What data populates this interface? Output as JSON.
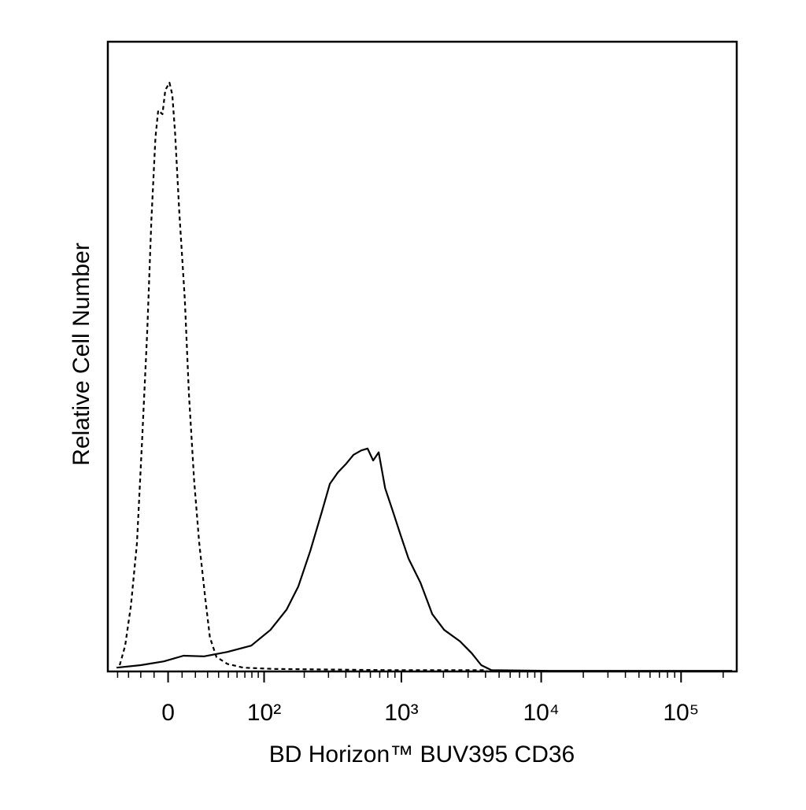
{
  "chart_data": {
    "type": "line",
    "x_label": "BD Horizon™ BUV395 CD36",
    "y_label": "Relative Cell Number",
    "xscale": "biexponential",
    "xlim": [
      -50,
      250000
    ],
    "ylim": [
      0,
      100
    ],
    "xticks": [
      {
        "value": 0,
        "label": "0"
      },
      {
        "value": 100,
        "label": "10²"
      },
      {
        "value": 1000,
        "label": "10³"
      },
      {
        "value": 10000,
        "label": "10⁴"
      },
      {
        "value": 100000,
        "label": "10⁵"
      }
    ],
    "xminor_ticks": [
      -40,
      -30,
      -20,
      -10,
      10,
      20,
      30,
      40,
      50,
      60,
      70,
      80,
      90,
      200,
      300,
      400,
      500,
      600,
      700,
      800,
      900,
      2000,
      3000,
      4000,
      5000,
      6000,
      7000,
      8000,
      9000,
      20000,
      30000,
      40000,
      50000,
      60000,
      70000,
      80000,
      90000,
      200000
    ],
    "series": [
      {
        "color": "#000000",
        "dash": true,
        "x": [
          -38,
          -33,
          -28,
          -23,
          -19,
          -15,
          -12,
          -9,
          -7,
          -4,
          -2,
          1,
          3,
          5,
          8,
          12,
          15,
          19,
          23,
          28,
          32,
          38,
          49,
          68,
          120,
          870,
          4100
        ],
        "values": [
          1,
          4.1,
          10.4,
          20.4,
          36.6,
          54.1,
          71.6,
          84.8,
          89.1,
          88.5,
          92.3,
          93.5,
          91.6,
          85.4,
          72.9,
          59.1,
          44.1,
          30.4,
          20.4,
          11.6,
          5.4,
          2.3,
          1.2,
          0.6,
          0.4,
          0.2,
          0.2
        ]
      },
      {
        "color": "#000000",
        "dash": false,
        "x": [
          -41,
          -20,
          -3,
          11,
          27,
          49,
          79,
          112,
          148,
          181,
          221,
          269,
          307,
          350,
          399,
          454,
          516,
          573,
          628,
          688,
          765,
          870,
          990,
          1126,
          1370,
          1665,
          2024,
          2623,
          3187,
          3724,
          4408,
          11650,
          231800
        ],
        "values": [
          0.6,
          1,
          1.6,
          2.5,
          2.4,
          3.1,
          4.1,
          6.6,
          9.8,
          13.5,
          19.1,
          25.4,
          29.8,
          31.6,
          32.9,
          34.4,
          35.1,
          35.4,
          33.5,
          34.8,
          29.1,
          25.4,
          21.6,
          17.9,
          14.1,
          9.1,
          6.6,
          4.8,
          2.9,
          1,
          0.2,
          0.1,
          0.1
        ]
      }
    ]
  }
}
